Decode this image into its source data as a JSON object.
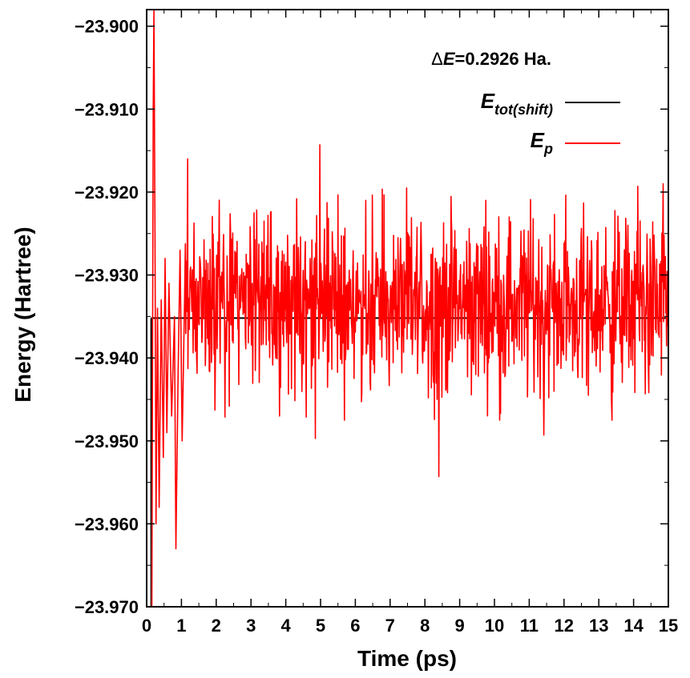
{
  "chart_data": {
    "type": "line",
    "xlabel": "Time (ps)",
    "ylabel": "Energy (Hartree)",
    "xlim": [
      0,
      15
    ],
    "ylim": [
      -23.97,
      -23.898
    ],
    "x_ticks": [
      0,
      1,
      2,
      3,
      4,
      5,
      6,
      7,
      8,
      9,
      10,
      11,
      12,
      13,
      14,
      15
    ],
    "y_ticks": [
      -23.97,
      -23.96,
      -23.95,
      -23.94,
      -23.93,
      -23.92,
      -23.91,
      -23.9
    ],
    "y_tick_labels": [
      "−23.970",
      "−23.960",
      "−23.950",
      "−23.940",
      "−23.930",
      "−23.920",
      "−23.910",
      "−23.900"
    ],
    "grid": false,
    "legend_position": "top-right",
    "annotation": {
      "delta_symbol": "Δ",
      "var": "E",
      "text": "=0.2926 Ha."
    },
    "series": [
      {
        "name_main": "E",
        "name_sub": "tot(shift)",
        "color": "#000000",
        "segments": [
          [
            [
              0.13,
              -23.97
            ],
            [
              0.13,
              -23.9352
            ]
          ],
          [
            [
              0.13,
              -23.9352
            ],
            [
              15.0,
              -23.9352
            ]
          ]
        ]
      },
      {
        "name_main": "E",
        "name_sub": "p",
        "color": "#ff0000",
        "generator": {
          "seed": 29,
          "dt": 0.0125,
          "mean": -23.9335,
          "noise_amplitude": 0.0052,
          "warmup_end": 1.1
        },
        "key_points": [
          [
            0.15,
            -23.97
          ],
          [
            0.19,
            -23.91
          ],
          [
            0.21,
            -23.898
          ],
          [
            0.24,
            -23.925
          ],
          [
            0.27,
            -23.96
          ],
          [
            0.31,
            -23.934
          ],
          [
            0.36,
            -23.958
          ],
          [
            0.42,
            -23.933
          ],
          [
            0.48,
            -23.952
          ],
          [
            0.53,
            -23.928
          ],
          [
            0.58,
            -23.949
          ],
          [
            0.64,
            -23.931
          ],
          [
            0.72,
            -23.947
          ],
          [
            0.8,
            -23.935
          ],
          [
            0.84,
            -23.963
          ],
          [
            0.9,
            -23.943
          ],
          [
            0.96,
            -23.927
          ],
          [
            1.02,
            -23.95
          ],
          [
            1.09,
            -23.933
          ],
          [
            1.18,
            -23.916
          ],
          [
            4.98,
            -23.9143
          ],
          [
            4.85,
            -23.9497
          ],
          [
            8.4,
            -23.9543
          ],
          [
            3.82,
            -23.947
          ],
          [
            11.42,
            -23.9493
          ],
          [
            13.38,
            -23.9475
          ],
          [
            14.12,
            -23.9193
          ],
          [
            14.85,
            -23.919
          ],
          [
            2.65,
            -23.9432
          ],
          [
            6.3,
            -23.921
          ],
          [
            9.75,
            -23.921
          ],
          [
            12.7,
            -23.9445
          ]
        ]
      }
    ]
  }
}
